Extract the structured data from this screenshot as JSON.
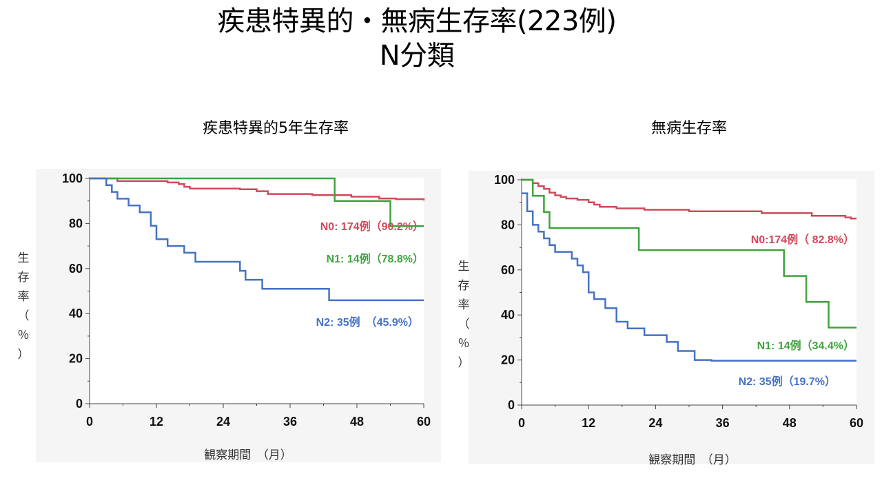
{
  "title": {
    "line1": "疾患特異的・無病生存率(223例)",
    "line2": "N分類"
  },
  "chart_data": [
    {
      "type": "line",
      "title": "疾患特異的5年生存率",
      "xlabel": "観察期間　（月）",
      "ylabel": "生存率（％）",
      "xlim": [
        0,
        60
      ],
      "ylim": [
        0,
        100
      ],
      "x_ticks": [
        0,
        12,
        24,
        36,
        48,
        60
      ],
      "y_ticks": [
        0,
        20,
        40,
        60,
        80,
        100
      ],
      "grid": false,
      "series": [
        {
          "name": "N0: 174例（90.2%）",
          "color": "#d0485a",
          "points": [
            [
              0,
              100
            ],
            [
              5,
              98.8
            ],
            [
              14,
              98.2
            ],
            [
              16,
              97.5
            ],
            [
              17,
              96.3
            ],
            [
              18,
              95.5
            ],
            [
              27,
              95.2
            ],
            [
              30,
              94.3
            ],
            [
              32,
              93.1
            ],
            [
              40,
              92.6
            ],
            [
              47,
              91.9
            ],
            [
              52,
              91.1
            ],
            [
              55,
              90.8
            ],
            [
              60,
              90.2
            ]
          ]
        },
        {
          "name": "N1: 14例（78.8%）",
          "color": "#3fa33f",
          "points": [
            [
              0,
              100
            ],
            [
              44,
              100
            ],
            [
              44,
              90
            ],
            [
              54,
              90
            ],
            [
              54,
              78.8
            ],
            [
              60,
              78.8
            ]
          ]
        },
        {
          "name": "N2: 35例　（45.9%）",
          "color": "#4472c4",
          "points": [
            [
              0,
              100
            ],
            [
              3,
              100
            ],
            [
              3,
              97
            ],
            [
              4,
              94
            ],
            [
              5,
              91
            ],
            [
              7,
              88
            ],
            [
              9,
              85
            ],
            [
              11,
              79
            ],
            [
              12,
              73
            ],
            [
              14,
              70
            ],
            [
              17,
              67
            ],
            [
              19,
              63
            ],
            [
              27,
              63
            ],
            [
              27,
              59
            ],
            [
              28,
              55
            ],
            [
              31,
              51
            ],
            [
              43,
              51
            ],
            [
              43,
              45.9
            ],
            [
              60,
              45.9
            ]
          ]
        }
      ]
    },
    {
      "type": "line",
      "title": "無病生存率",
      "xlabel": "観察期間　（月）",
      "ylabel": "生存率（％）",
      "xlim": [
        0,
        60
      ],
      "ylim": [
        0,
        100
      ],
      "x_ticks": [
        0,
        12,
        24,
        36,
        48,
        60
      ],
      "y_ticks": [
        0,
        20,
        40,
        60,
        80,
        100
      ],
      "grid": false,
      "series": [
        {
          "name": "N0:174例（ 82.8%）",
          "color": "#d0485a",
          "points": [
            [
              0,
              100
            ],
            [
              2,
              98.5
            ],
            [
              3,
              97.2
            ],
            [
              4,
              96
            ],
            [
              5,
              94.3
            ],
            [
              6,
              93.1
            ],
            [
              7,
              92.4
            ],
            [
              8,
              91.7
            ],
            [
              10,
              91.1
            ],
            [
              12,
              90
            ],
            [
              13,
              89
            ],
            [
              14,
              88
            ],
            [
              17,
              87.3
            ],
            [
              22,
              86.7
            ],
            [
              30,
              86
            ],
            [
              43,
              85.2
            ],
            [
              52,
              84
            ],
            [
              58,
              83.3
            ],
            [
              59,
              82.8
            ],
            [
              60,
              82.8
            ]
          ]
        },
        {
          "name": "N1: 14例（34.4%）",
          "color": "#3fa33f",
          "points": [
            [
              0,
              100
            ],
            [
              2,
              100
            ],
            [
              2,
              92.9
            ],
            [
              4,
              92.9
            ],
            [
              4,
              85.7
            ],
            [
              5,
              85.7
            ],
            [
              5,
              78.6
            ],
            [
              21,
              78.6
            ],
            [
              21,
              68.8
            ],
            [
              47,
              68.8
            ],
            [
              47,
              57.3
            ],
            [
              51,
              57.3
            ],
            [
              51,
              45.8
            ],
            [
              55,
              45.8
            ],
            [
              55,
              34.4
            ],
            [
              60,
              34.4
            ]
          ]
        },
        {
          "name": "N2: 35例（19.7%）",
          "color": "#4472c4",
          "points": [
            [
              0,
              94
            ],
            [
              1,
              86
            ],
            [
              2,
              80
            ],
            [
              3,
              77
            ],
            [
              4,
              74
            ],
            [
              5,
              71
            ],
            [
              6,
              68
            ],
            [
              9,
              65
            ],
            [
              10,
              62
            ],
            [
              11,
              59
            ],
            [
              12,
              50
            ],
            [
              13,
              47
            ],
            [
              15,
              43
            ],
            [
              17,
              37
            ],
            [
              19,
              34
            ],
            [
              22,
              31
            ],
            [
              26,
              28
            ],
            [
              28,
              24
            ],
            [
              31,
              20
            ],
            [
              34,
              19.7
            ],
            [
              60,
              19.7
            ]
          ]
        }
      ]
    }
  ]
}
